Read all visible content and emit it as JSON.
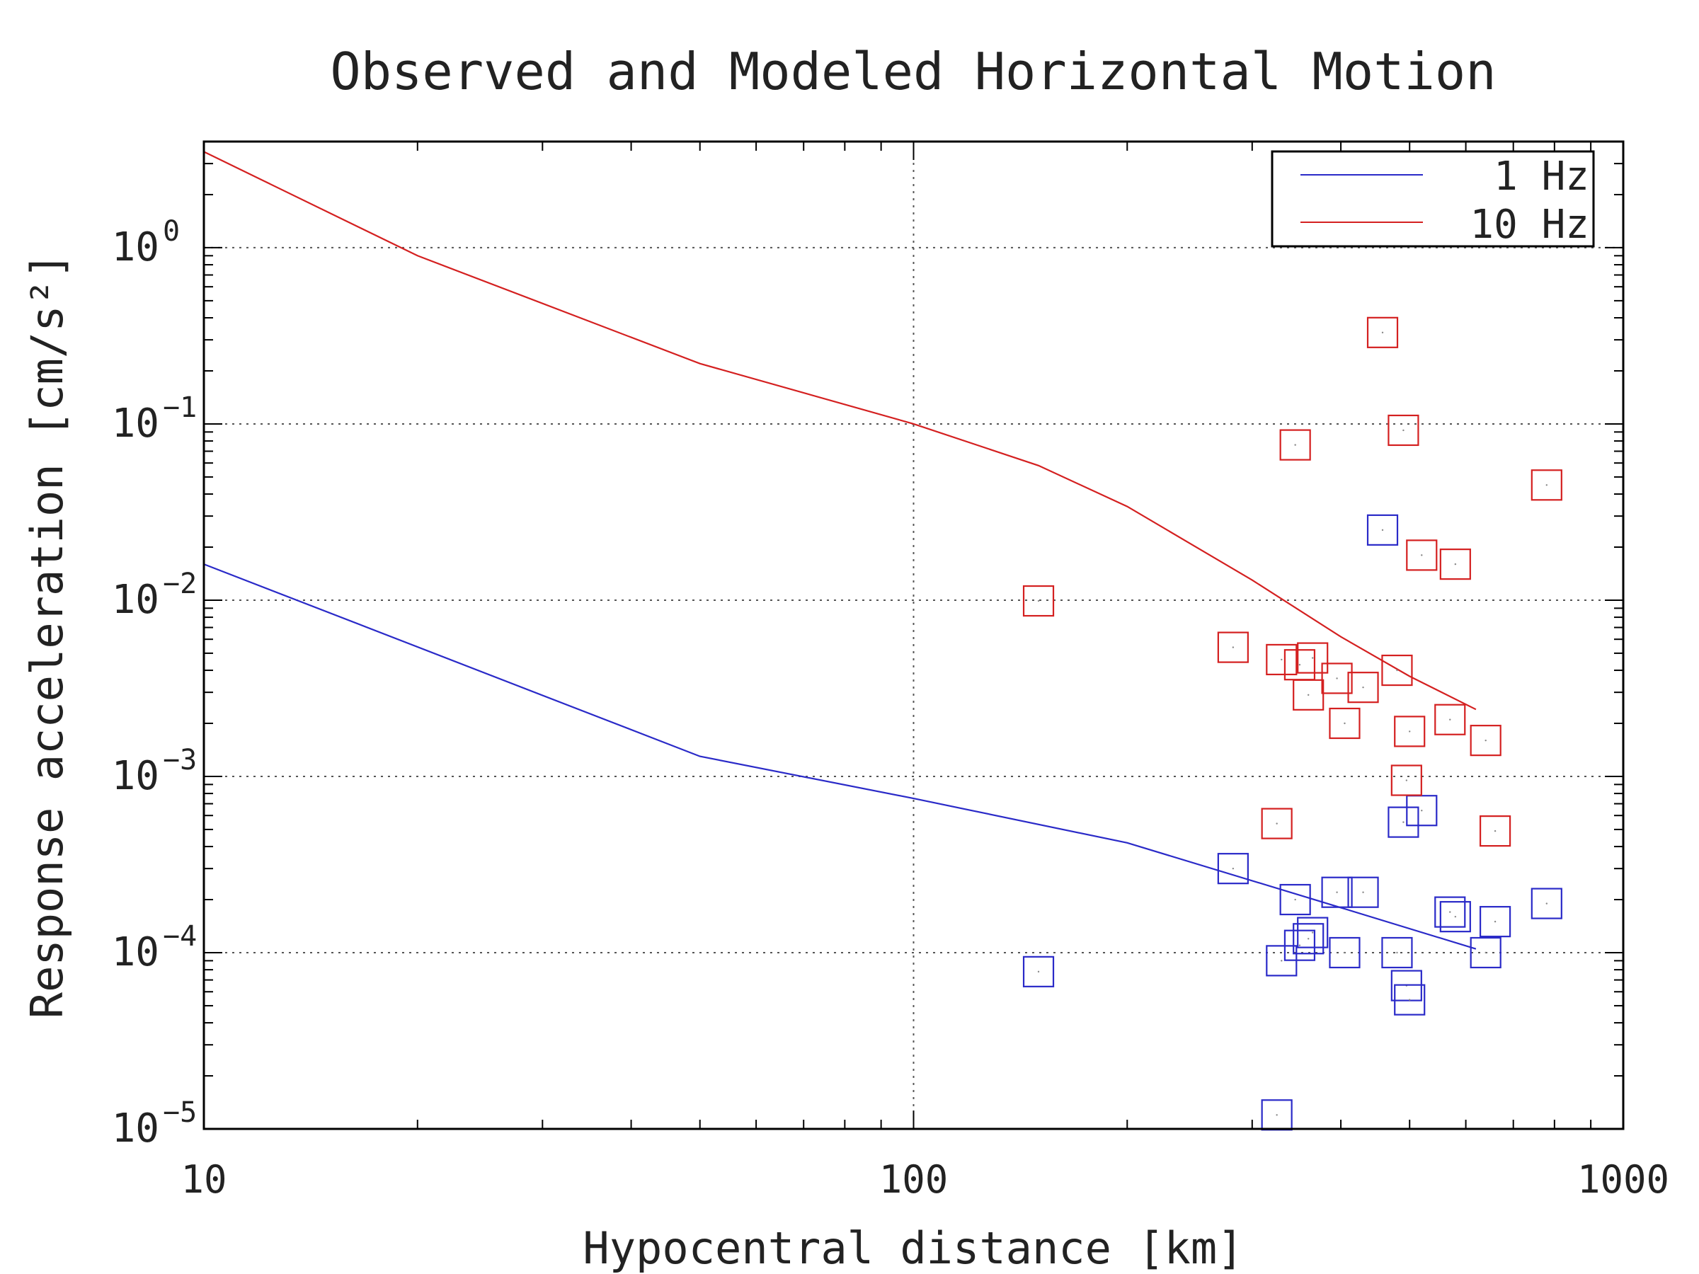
{
  "chart_data": {
    "type": "scatter",
    "title": "Observed and Modeled Horizontal Motion",
    "xlabel": "Hypocentral distance [km]",
    "ylabel": "Response acceleration [cm/s²]",
    "x_scale": "log",
    "y_scale": "log",
    "xlim": [
      10,
      1000
    ],
    "ylim": [
      1e-05,
      4
    ],
    "x_ticks": [
      {
        "value": 10,
        "label": "10"
      },
      {
        "value": 100,
        "label": "100"
      },
      {
        "value": 1000,
        "label": "1000"
      }
    ],
    "y_ticks": [
      {
        "value": 1,
        "base": "10",
        "exp": "0"
      },
      {
        "value": 0.1,
        "base": "10",
        "exp": "−1"
      },
      {
        "value": 0.01,
        "base": "10",
        "exp": "−2"
      },
      {
        "value": 0.001,
        "base": "10",
        "exp": "−3"
      },
      {
        "value": 0.0001,
        "base": "10",
        "exp": "−4"
      },
      {
        "value": 1e-05,
        "base": "10",
        "exp": "−5"
      }
    ],
    "grid": true,
    "legend": {
      "position": "top-right",
      "entries": [
        {
          "label": "1 Hz",
          "color": "#2a2ac8"
        },
        {
          "label": "10 Hz",
          "color": "#d42020"
        }
      ]
    },
    "series": [
      {
        "name": "1 Hz",
        "color": "#2a2ac8",
        "model": {
          "x": [
            10,
            50,
            100,
            200,
            400,
            620
          ],
          "y": [
            0.016,
            0.0013,
            0.00075,
            0.00042,
            0.00018,
            0.000105
          ]
        },
        "observed": {
          "x": [
            150,
            282,
            325,
            330,
            345,
            350,
            360,
            365,
            395,
            405,
            430,
            458,
            480,
            490,
            495,
            500,
            520,
            570,
            580,
            640,
            660,
            780
          ],
          "y": [
            7.8e-05,
            0.0003,
            1.2e-05,
            9e-05,
            0.0002,
            0.00011,
            0.00012,
            0.00013,
            0.00022,
            0.0001,
            0.00022,
            0.025,
            0.0001,
            0.00055,
            6.5e-05,
            5.4e-05,
            0.00064,
            0.00017,
            0.00016,
            0.0001,
            0.00015,
            0.00019
          ]
        }
      },
      {
        "name": "10 Hz",
        "color": "#d42020",
        "model": {
          "x": [
            10,
            20,
            50,
            100,
            150,
            200,
            300,
            400,
            500,
            620
          ],
          "y": [
            3.5,
            0.9,
            0.22,
            0.1,
            0.058,
            0.034,
            0.013,
            0.0062,
            0.0037,
            0.0024
          ]
        },
        "observed": {
          "x": [
            150,
            282,
            325,
            330,
            345,
            350,
            360,
            365,
            395,
            405,
            430,
            458,
            480,
            490,
            495,
            500,
            520,
            570,
            580,
            640,
            660,
            780
          ],
          "y": [
            0.0099,
            0.0054,
            0.00054,
            0.0046,
            0.076,
            0.0043,
            0.0029,
            0.0047,
            0.0036,
            0.002,
            0.0032,
            0.33,
            0.004,
            0.092,
            0.00095,
            0.0018,
            0.018,
            0.0021,
            0.016,
            0.0016,
            0.00049,
            0.045
          ]
        }
      }
    ]
  }
}
